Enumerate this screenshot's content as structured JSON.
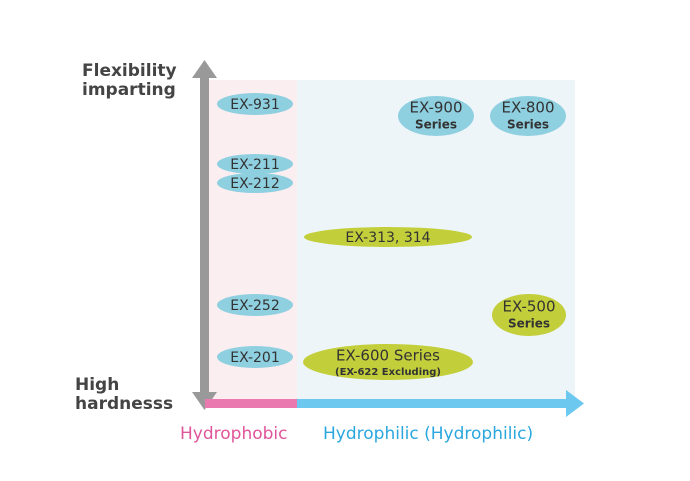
{
  "axes": {
    "y_top": [
      "Flexibility",
      "imparting"
    ],
    "y_bottom": [
      "High",
      "hardnesss"
    ],
    "x_left": "Hydrophobic",
    "x_right": "Hydrophilic (Hydrophilic)"
  },
  "nodes": [
    {
      "label": "EX-931"
    },
    {
      "label": "EX-211"
    },
    {
      "label": "EX-212"
    },
    {
      "label": "EX-252"
    },
    {
      "label": "EX-201"
    },
    {
      "label": "EX-900",
      "sublabel": "Series"
    },
    {
      "label": "EX-800",
      "sublabel": "Series"
    },
    {
      "label": "EX-313, 314"
    },
    {
      "label": "EX-500",
      "sublabel": "Series"
    },
    {
      "label": "EX-600 Series",
      "sublabel": "(EX-622 Excluding)"
    }
  ]
}
